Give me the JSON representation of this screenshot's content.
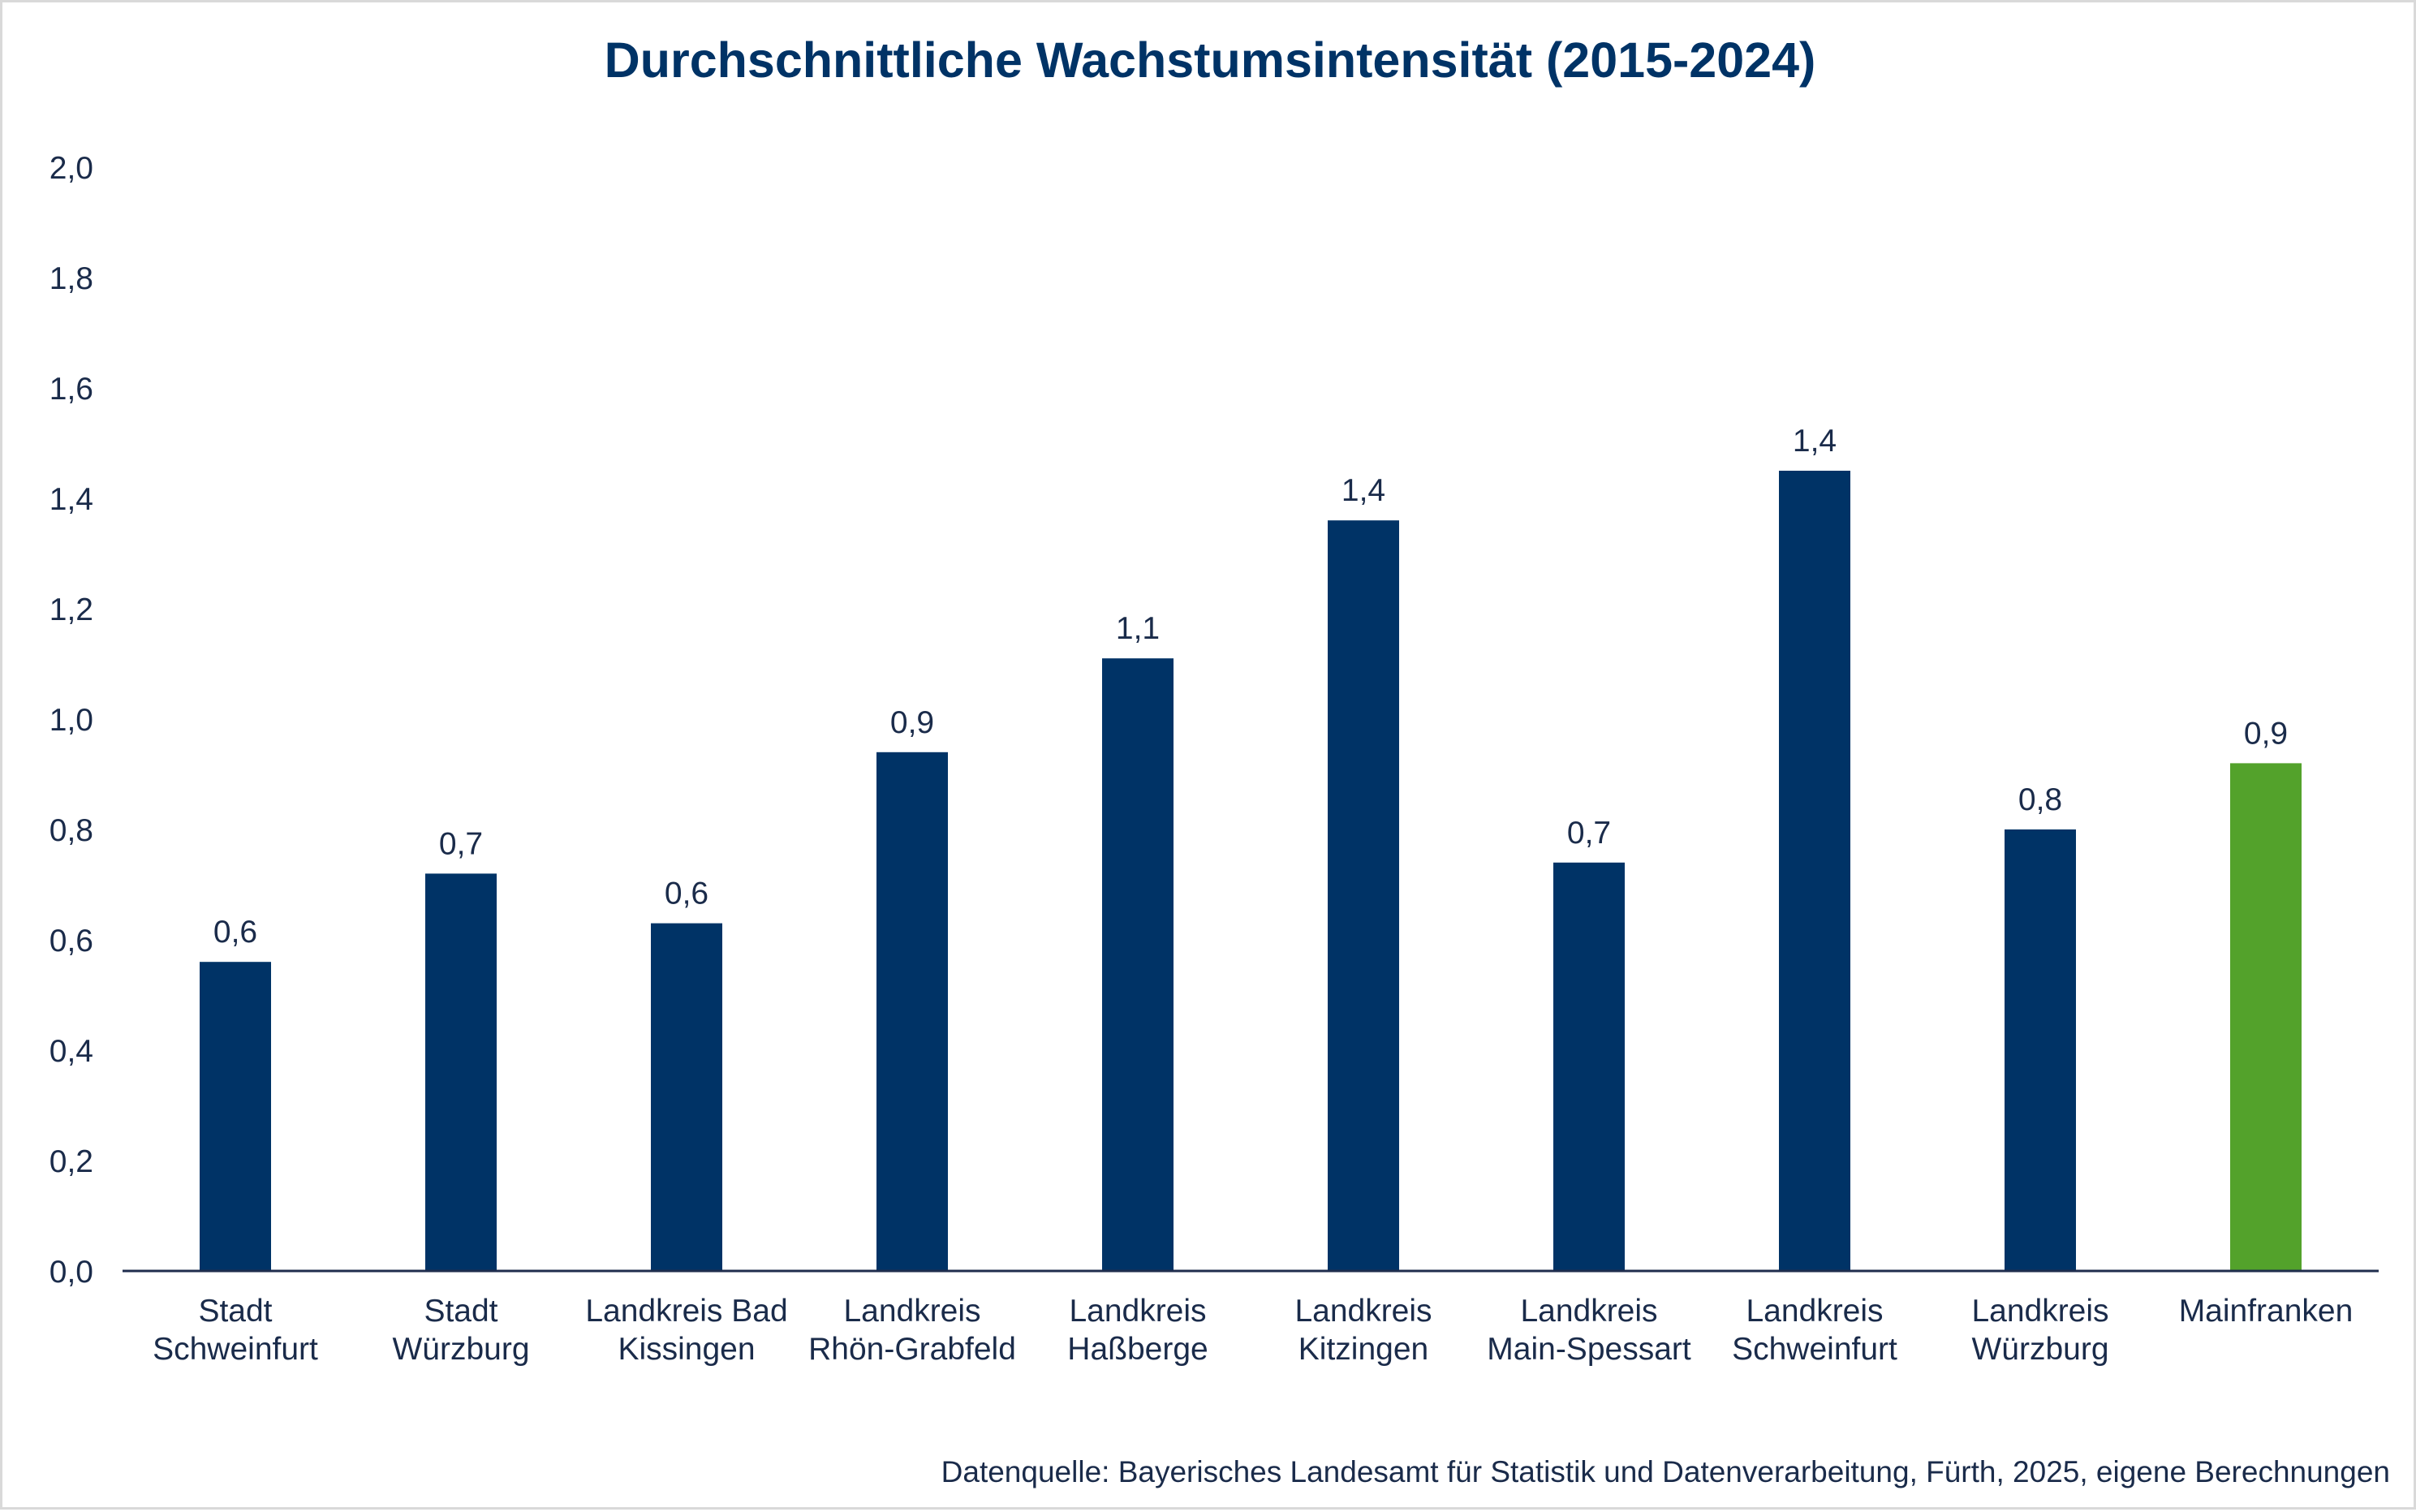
{
  "chart_data": {
    "type": "bar",
    "title": "Durchschnittliche Wachstumsintensität (2015-2024)",
    "xlabel": "",
    "ylabel": "",
    "ylim": [
      0,
      2.0
    ],
    "y_ticks": [
      "0,0",
      "0,2",
      "0,4",
      "0,6",
      "0,8",
      "1,0",
      "1,2",
      "1,4",
      "1,6",
      "1,8",
      "2,0"
    ],
    "y_tick_values": [
      0,
      0.2,
      0.4,
      0.6,
      0.8,
      1.0,
      1.2,
      1.4,
      1.6,
      1.8,
      2.0
    ],
    "grid": false,
    "legend": "none",
    "categories": [
      [
        "Stadt",
        "Schweinfurt"
      ],
      [
        "Stadt",
        "Würzburg"
      ],
      [
        "Landkreis Bad",
        "Kissingen"
      ],
      [
        "Landkreis",
        "Rhön-Grabfeld"
      ],
      [
        "Landkreis",
        "Haßberge"
      ],
      [
        "Landkreis",
        "Kitzingen"
      ],
      [
        "Landkreis",
        "Main-Spessart"
      ],
      [
        "Landkreis",
        "Schweinfurt"
      ],
      [
        "Landkreis",
        "Würzburg"
      ],
      [
        "Mainfranken"
      ]
    ],
    "values": [
      0.56,
      0.72,
      0.63,
      0.94,
      1.11,
      1.36,
      0.74,
      1.45,
      0.8,
      0.92
    ],
    "data_labels": [
      "0,6",
      "0,7",
      "0,6",
      "0,9",
      "1,1",
      "1,4",
      "0,7",
      "1,4",
      "0,8",
      "0,9"
    ],
    "bar_colors": [
      "#003366",
      "#003366",
      "#003366",
      "#003366",
      "#003366",
      "#003366",
      "#003366",
      "#003366",
      "#003366",
      "#53A22B"
    ],
    "source": "Datenquelle: Bayerisches Landesamt für Statistik und Datenverarbeitung, Fürth, 2025, eigene Berechnungen"
  }
}
